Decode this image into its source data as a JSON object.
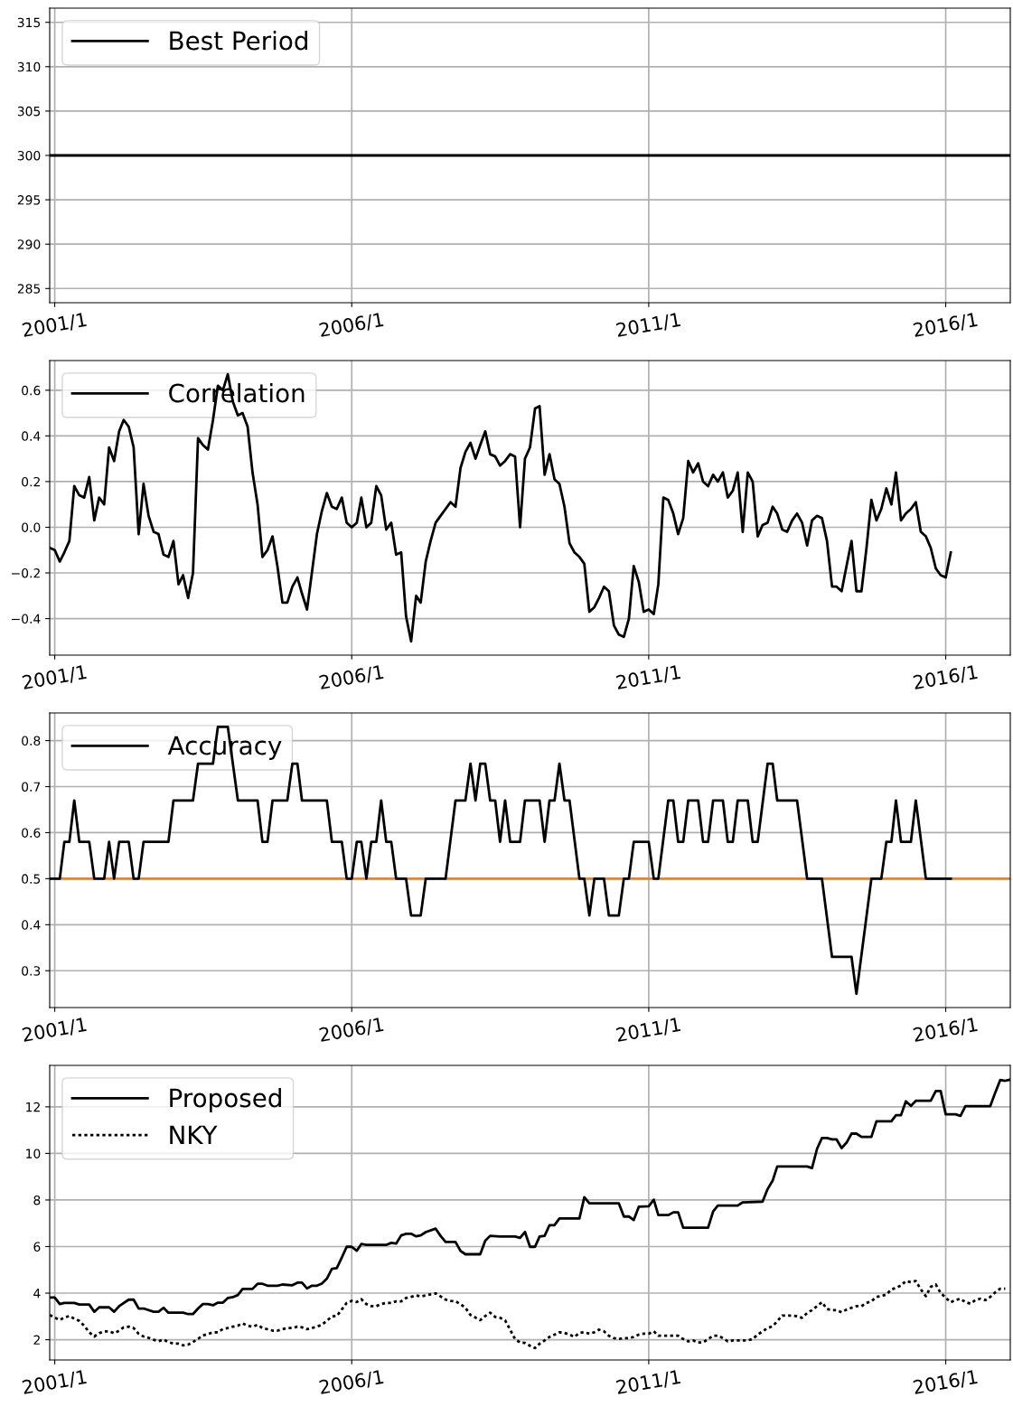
{
  "chart_data": [
    {
      "type": "line",
      "xlim": [
        "2000-12",
        "2017-02"
      ],
      "ylim": [
        283.4,
        316.6
      ],
      "yticks": [
        285,
        290,
        295,
        300,
        305,
        310,
        315
      ],
      "xticks": [
        {
          "value": "2001-01",
          "label": "2001/1"
        },
        {
          "value": "2006-01",
          "label": "2006/1"
        },
        {
          "value": "2011-01",
          "label": "2011/1"
        },
        {
          "value": "2016-01",
          "label": "2016/1"
        }
      ],
      "grid": true,
      "legend": "top left",
      "series": [
        {
          "name": "Best Period",
          "color": "#000000",
          "line_style": "solid",
          "x": [
            "2000-12",
            "2017-02"
          ],
          "values": [
            300,
            300
          ]
        }
      ]
    },
    {
      "type": "line",
      "xlim": [
        "2000-12",
        "2017-02"
      ],
      "ylim": [
        -0.56,
        0.73
      ],
      "yticks": [
        {
          "value": -0.4,
          "label": "−0.4"
        },
        {
          "value": -0.2,
          "label": "−0.2"
        },
        {
          "value": 0,
          "label": "0.0"
        },
        0.2,
        0.4,
        0.6
      ],
      "xticks": [
        {
          "value": "2001-01",
          "label": "2001/1"
        },
        {
          "value": "2006-01",
          "label": "2006/1"
        },
        {
          "value": "2011-01",
          "label": "2011/1"
        },
        {
          "value": "2016-01",
          "label": "2016/1"
        }
      ],
      "grid": true,
      "legend": "top left",
      "x": [
        "2000-12",
        "2001-01",
        "2001-02",
        "2001-03",
        "2001-04",
        "2001-05",
        "2001-06",
        "2001-07",
        "2001-08",
        "2001-09",
        "2001-10",
        "2001-11",
        "2001-12",
        "2002-01",
        "2002-02",
        "2002-03",
        "2002-04",
        "2002-05",
        "2002-06",
        "2002-07",
        "2002-08",
        "2002-09",
        "2002-10",
        "2002-11",
        "2002-12",
        "2003-01",
        "2003-02",
        "2003-03",
        "2003-04",
        "2003-05",
        "2003-06",
        "2003-07",
        "2003-08",
        "2003-09",
        "2003-10",
        "2003-11",
        "2003-12",
        "2004-01",
        "2004-02",
        "2004-03",
        "2004-04",
        "2004-05",
        "2004-06",
        "2004-07",
        "2004-08",
        "2004-09",
        "2004-10",
        "2004-11",
        "2004-12",
        "2005-01",
        "2005-02",
        "2005-03",
        "2005-04",
        "2005-05",
        "2005-06",
        "2005-07",
        "2005-08",
        "2005-09",
        "2005-10",
        "2005-11",
        "2005-12",
        "2006-01",
        "2006-02",
        "2006-03",
        "2006-04",
        "2006-05",
        "2006-06",
        "2006-07",
        "2006-08",
        "2006-09",
        "2006-10",
        "2006-11",
        "2006-12",
        "2007-01",
        "2007-02",
        "2007-03",
        "2007-04",
        "2007-05",
        "2007-06",
        "2007-07",
        "2007-08",
        "2007-09",
        "2007-10",
        "2007-11",
        "2007-12",
        "2008-01",
        "2008-02",
        "2008-03",
        "2008-04",
        "2008-05",
        "2008-06",
        "2008-07",
        "2008-08",
        "2008-09",
        "2008-10",
        "2008-11",
        "2008-12",
        "2009-01",
        "2009-02",
        "2009-03",
        "2009-04",
        "2009-05",
        "2009-06",
        "2009-07",
        "2009-08",
        "2009-09",
        "2009-10",
        "2009-11",
        "2009-12",
        "2010-01",
        "2010-02",
        "2010-03",
        "2010-04",
        "2010-05",
        "2010-06",
        "2010-07",
        "2010-08",
        "2010-09",
        "2010-10",
        "2010-11",
        "2010-12",
        "2011-01",
        "2011-02",
        "2011-03",
        "2011-04",
        "2011-05",
        "2011-06",
        "2011-07",
        "2011-08",
        "2011-09",
        "2011-10",
        "2011-11",
        "2011-12",
        "2012-01",
        "2012-02",
        "2012-03",
        "2012-04",
        "2012-05",
        "2012-06",
        "2012-07",
        "2012-08",
        "2012-09",
        "2012-10",
        "2012-11",
        "2012-12",
        "2013-01",
        "2013-02",
        "2013-03",
        "2013-04",
        "2013-05",
        "2013-06",
        "2013-07",
        "2013-08",
        "2013-09",
        "2013-10",
        "2013-11",
        "2013-12",
        "2014-01",
        "2014-02",
        "2014-03",
        "2014-04",
        "2014-05",
        "2014-06",
        "2014-07",
        "2014-08",
        "2014-09",
        "2014-10",
        "2014-11",
        "2014-12",
        "2015-01",
        "2015-02",
        "2015-03",
        "2015-04",
        "2015-05",
        "2015-06",
        "2015-07",
        "2015-08",
        "2015-09",
        "2015-10",
        "2015-11",
        "2015-12",
        "2016-01",
        "2016-02"
      ],
      "series": [
        {
          "name": "Correlation",
          "color": "#000000",
          "line_style": "solid",
          "values": [
            -0.09,
            -0.1,
            -0.15,
            -0.11,
            -0.06,
            0.18,
            0.14,
            0.13,
            0.22,
            0.03,
            0.13,
            0.1,
            0.35,
            0.29,
            0.42,
            0.47,
            0.44,
            0.35,
            -0.03,
            0.19,
            0.05,
            -0.02,
            -0.03,
            -0.12,
            -0.13,
            -0.06,
            -0.25,
            -0.21,
            -0.31,
            -0.2,
            0.39,
            0.36,
            0.34,
            0.47,
            0.62,
            0.6,
            0.67,
            0.55,
            0.49,
            0.5,
            0.44,
            0.24,
            0.1,
            -0.13,
            -0.1,
            -0.04,
            -0.17,
            -0.33,
            -0.33,
            -0.26,
            -0.22,
            -0.29,
            -0.36,
            -0.2,
            -0.03,
            0.07,
            0.15,
            0.09,
            0.08,
            0.13,
            0.02,
            0.0,
            0.02,
            0.13,
            0.0,
            0.02,
            0.18,
            0.14,
            -0.01,
            0.02,
            -0.12,
            -0.11,
            -0.39,
            -0.5,
            -0.3,
            -0.33,
            -0.15,
            -0.06,
            0.02,
            0.05,
            0.08,
            0.11,
            0.09,
            0.26,
            0.33,
            0.37,
            0.3,
            0.36,
            0.42,
            0.32,
            0.31,
            0.27,
            0.29,
            0.32,
            0.31,
            0.0,
            0.3,
            0.35,
            0.52,
            0.53,
            0.23,
            0.32,
            0.21,
            0.19,
            0.09,
            -0.07,
            -0.11,
            -0.13,
            -0.16,
            -0.37,
            -0.35,
            -0.31,
            -0.26,
            -0.28,
            -0.43,
            -0.47,
            -0.48,
            -0.4,
            -0.17,
            -0.24,
            -0.37,
            -0.36,
            -0.38,
            -0.25,
            0.13,
            0.12,
            0.06,
            -0.03,
            0.04,
            0.29,
            0.24,
            0.28,
            0.2,
            0.18,
            0.23,
            0.2,
            0.24,
            0.13,
            0.16,
            0.24,
            -0.02,
            0.24,
            0.2,
            -0.04,
            0.01,
            0.02,
            0.09,
            0.06,
            -0.01,
            -0.02,
            0.03,
            0.06,
            0.02,
            -0.08,
            0.03,
            0.05,
            0.04,
            -0.06,
            -0.26,
            -0.26,
            -0.28,
            -0.17,
            -0.06,
            -0.28,
            -0.28,
            -0.09,
            0.12,
            0.03,
            0.08,
            0.17,
            0.1,
            0.24,
            0.03,
            0.06,
            0.08,
            0.11,
            -0.02,
            -0.04,
            -0.09,
            -0.18,
            -0.21,
            -0.22,
            -0.11
          ]
        }
      ]
    },
    {
      "type": "line",
      "xlim": [
        "2000-12",
        "2017-02"
      ],
      "ylim": [
        0.22,
        0.86
      ],
      "yticks": [
        0.3,
        0.4,
        0.5,
        0.6,
        0.7,
        0.8
      ],
      "xticks": [
        {
          "value": "2001-01",
          "label": "2001/1"
        },
        {
          "value": "2006-01",
          "label": "2006/1"
        },
        {
          "value": "2011-01",
          "label": "2011/1"
        },
        {
          "value": "2016-01",
          "label": "2016/1"
        }
      ],
      "grid": true,
      "legend": "top left",
      "ref_lines": [
        {
          "axis": "y",
          "value": 0.5,
          "color": "#ff7f0e"
        }
      ],
      "series": [
        {
          "name": "Accuracy",
          "color": "#000000",
          "line_style": "solid",
          "x": [
            "2000-12",
            "2001-02",
            "2001-03",
            "2001-04",
            "2001-05",
            "2001-06",
            "2001-08",
            "2001-09",
            "2001-11",
            "2001-12",
            "2002-01",
            "2002-02",
            "2002-04",
            "2002-05",
            "2002-06",
            "2002-07",
            "2002-12",
            "2003-01",
            "2003-05",
            "2003-06",
            "2003-09",
            "2003-10",
            "2003-12",
            "2004-01",
            "2004-02",
            "2004-06",
            "2004-07",
            "2004-08",
            "2004-09",
            "2004-12",
            "2005-01",
            "2005-02",
            "2005-03",
            "2005-08",
            "2005-09",
            "2005-11",
            "2005-12",
            "2006-01",
            "2006-02",
            "2006-03",
            "2006-04",
            "2006-05",
            "2006-06",
            "2006-07",
            "2006-08",
            "2006-09",
            "2006-10",
            "2006-12",
            "2007-01",
            "2007-03",
            "2007-04",
            "2007-08",
            "2007-10",
            "2007-12",
            "2008-01",
            "2008-02",
            "2008-03",
            "2008-04",
            "2008-05",
            "2008-06",
            "2008-07",
            "2008-08",
            "2008-09",
            "2008-11",
            "2008-12",
            "2009-03",
            "2009-04",
            "2009-05",
            "2009-06",
            "2009-07",
            "2009-08",
            "2009-09",
            "2009-11",
            "2009-12",
            "2010-01",
            "2010-02",
            "2010-04",
            "2010-05",
            "2010-07",
            "2010-08",
            "2010-09",
            "2010-10",
            "2011-01",
            "2011-02",
            "2011-03",
            "2011-05",
            "2011-06",
            "2011-07",
            "2011-08",
            "2011-09",
            "2011-11",
            "2011-12",
            "2012-01",
            "2012-02",
            "2012-04",
            "2012-05",
            "2012-06",
            "2012-07",
            "2012-09",
            "2012-10",
            "2012-11",
            "2013-01",
            "2013-02",
            "2013-03",
            "2013-07",
            "2013-09",
            "2013-12",
            "2014-02",
            "2014-06",
            "2014-07",
            "2014-10",
            "2014-12",
            "2015-01",
            "2015-02",
            "2015-03",
            "2015-04",
            "2015-06",
            "2015-07",
            "2015-09",
            "2016-02"
          ],
          "values": [
            0.5,
            0.5,
            0.58,
            0.58,
            0.67,
            0.58,
            0.58,
            0.5,
            0.5,
            0.58,
            0.5,
            0.58,
            0.58,
            0.5,
            0.5,
            0.58,
            0.58,
            0.67,
            0.67,
            0.75,
            0.75,
            0.83,
            0.83,
            0.75,
            0.67,
            0.67,
            0.58,
            0.58,
            0.67,
            0.67,
            0.75,
            0.75,
            0.67,
            0.67,
            0.58,
            0.58,
            0.5,
            0.5,
            0.58,
            0.58,
            0.5,
            0.58,
            0.58,
            0.67,
            0.58,
            0.58,
            0.5,
            0.5,
            0.42,
            0.42,
            0.5,
            0.5,
            0.67,
            0.67,
            0.75,
            0.67,
            0.75,
            0.75,
            0.67,
            0.67,
            0.58,
            0.67,
            0.58,
            0.58,
            0.67,
            0.67,
            0.58,
            0.67,
            0.67,
            0.75,
            0.67,
            0.67,
            0.5,
            0.5,
            0.42,
            0.5,
            0.5,
            0.42,
            0.42,
            0.5,
            0.5,
            0.58,
            0.58,
            0.5,
            0.5,
            0.67,
            0.67,
            0.58,
            0.58,
            0.67,
            0.67,
            0.58,
            0.58,
            0.67,
            0.67,
            0.58,
            0.58,
            0.67,
            0.67,
            0.58,
            0.58,
            0.75,
            0.75,
            0.67,
            0.67,
            0.5,
            0.5,
            0.33,
            0.33,
            0.25,
            0.5,
            0.5,
            0.58,
            0.58,
            0.67,
            0.58,
            0.58,
            0.67,
            0.5,
            0.5
          ]
        }
      ]
    },
    {
      "type": "line",
      "xlim": [
        "2000-12",
        "2017-02"
      ],
      "ylim": [
        1.13,
        13.78
      ],
      "yticks": [
        2,
        4,
        6,
        8,
        10,
        12
      ],
      "xticks": [
        {
          "value": "2001-01",
          "label": "2001/1"
        },
        {
          "value": "2006-01",
          "label": "2006/1"
        },
        {
          "value": "2011-01",
          "label": "2011/1"
        },
        {
          "value": "2016-01",
          "label": "2016/1"
        }
      ],
      "grid": true,
      "legend": "top left",
      "x": [
        "2000-12",
        "2001-01",
        "2001-02",
        "2001-03",
        "2001-04",
        "2001-05",
        "2001-06",
        "2001-07",
        "2001-08",
        "2001-09",
        "2001-10",
        "2001-11",
        "2001-12",
        "2002-01",
        "2002-02",
        "2002-03",
        "2002-04",
        "2002-05",
        "2002-06",
        "2002-07",
        "2002-08",
        "2002-09",
        "2002-10",
        "2002-11",
        "2002-12",
        "2003-01",
        "2003-02",
        "2003-03",
        "2003-04",
        "2003-05",
        "2003-06",
        "2003-07",
        "2003-08",
        "2003-09",
        "2003-10",
        "2003-11",
        "2003-12",
        "2004-01",
        "2004-02",
        "2004-03",
        "2004-04",
        "2004-05",
        "2004-06",
        "2004-07",
        "2004-08",
        "2004-09",
        "2004-10",
        "2004-11",
        "2004-12",
        "2005-01",
        "2005-02",
        "2005-03",
        "2005-04",
        "2005-05",
        "2005-06",
        "2005-07",
        "2005-08",
        "2005-09",
        "2005-10",
        "2005-11",
        "2005-12",
        "2006-01",
        "2006-02",
        "2006-03",
        "2006-04",
        "2006-05",
        "2006-06",
        "2006-07",
        "2006-08",
        "2006-09",
        "2006-10",
        "2006-11",
        "2006-12",
        "2007-01",
        "2007-02",
        "2007-03",
        "2007-04",
        "2007-05",
        "2007-06",
        "2007-07",
        "2007-08",
        "2007-09",
        "2007-10",
        "2007-11",
        "2007-12",
        "2008-01",
        "2008-02",
        "2008-03",
        "2008-04",
        "2008-05",
        "2008-06",
        "2008-07",
        "2008-08",
        "2008-09",
        "2008-10",
        "2008-11",
        "2008-12",
        "2009-01",
        "2009-02",
        "2009-03",
        "2009-04",
        "2009-05",
        "2009-06",
        "2009-07",
        "2009-08",
        "2009-09",
        "2009-10",
        "2009-11",
        "2009-12",
        "2010-01",
        "2010-02",
        "2010-03",
        "2010-04",
        "2010-05",
        "2010-06",
        "2010-07",
        "2010-08",
        "2010-09",
        "2010-10",
        "2010-11",
        "2010-12",
        "2011-01",
        "2011-02",
        "2011-03",
        "2011-04",
        "2011-05",
        "2011-06",
        "2011-07",
        "2011-08",
        "2011-09",
        "2011-10",
        "2011-11",
        "2011-12",
        "2012-01",
        "2012-02",
        "2012-03",
        "2012-04",
        "2012-05",
        "2012-06",
        "2012-07",
        "2012-08",
        "2012-09",
        "2012-10",
        "2012-11",
        "2012-12",
        "2013-01",
        "2013-02",
        "2013-03",
        "2013-04",
        "2013-05",
        "2013-06",
        "2013-07",
        "2013-08",
        "2013-09",
        "2013-10",
        "2013-11",
        "2013-12",
        "2014-01",
        "2014-02",
        "2014-03",
        "2014-04",
        "2014-05",
        "2014-06",
        "2014-07",
        "2014-08",
        "2014-09",
        "2014-10",
        "2014-11",
        "2014-12",
        "2015-01",
        "2015-02",
        "2015-03",
        "2015-04",
        "2015-05",
        "2015-06",
        "2015-07",
        "2015-08",
        "2015-09",
        "2015-10",
        "2015-11",
        "2015-12",
        "2016-01",
        "2016-02",
        "2016-03",
        "2016-04",
        "2016-05",
        "2016-06",
        "2016-07",
        "2016-08",
        "2016-09",
        "2016-10",
        "2016-11",
        "2016-12",
        "2017-01"
      ],
      "series": [
        {
          "name": "Proposed",
          "color": "#000000",
          "line_style": "solid",
          "x": [
            "2000-12",
            "2001-01",
            "2001-02",
            "2001-03",
            "2001-05",
            "2001-06",
            "2001-08",
            "2001-09",
            "2001-10",
            "2001-12",
            "2002-01",
            "2002-02",
            "2002-04",
            "2002-05",
            "2002-06",
            "2002-07",
            "2002-09",
            "2002-10",
            "2002-11",
            "2002-12",
            "2003-03",
            "2003-04",
            "2003-05",
            "2003-06",
            "2003-07",
            "2003-08",
            "2003-09",
            "2003-10",
            "2003-11",
            "2003-12",
            "2004-01",
            "2004-02",
            "2004-03",
            "2004-05",
            "2004-06",
            "2004-07",
            "2004-08",
            "2004-10",
            "2004-11",
            "2005-01",
            "2005-02",
            "2005-03",
            "2005-04",
            "2005-05",
            "2005-06",
            "2005-07",
            "2005-08",
            "2005-09",
            "2005-10",
            "2005-11",
            "2005-12",
            "2006-01",
            "2006-02",
            "2006-03",
            "2006-04",
            "2006-08",
            "2006-09",
            "2006-10",
            "2006-11",
            "2006-12",
            "2007-01",
            "2007-02",
            "2007-03",
            "2007-04",
            "2007-06",
            "2007-07",
            "2007-08",
            "2007-10",
            "2007-11",
            "2007-12",
            "2008-03",
            "2008-04",
            "2008-05",
            "2008-07",
            "2008-10",
            "2008-11",
            "2008-12",
            "2009-01",
            "2009-02",
            "2009-03",
            "2009-04",
            "2009-05",
            "2009-06",
            "2009-07",
            "2009-11",
            "2009-12",
            "2010-01",
            "2010-07",
            "2010-08",
            "2010-09",
            "2010-10",
            "2010-11",
            "2011-01",
            "2011-02",
            "2011-03",
            "2011-05",
            "2011-06",
            "2011-07",
            "2011-08",
            "2012-01",
            "2012-02",
            "2012-03",
            "2012-07",
            "2012-08",
            "2012-12",
            "2013-01",
            "2013-02",
            "2013-03",
            "2013-09",
            "2013-10",
            "2013-11",
            "2013-12",
            "2014-01",
            "2014-02",
            "2014-03",
            "2014-04",
            "2014-05",
            "2014-06",
            "2014-07",
            "2014-08",
            "2014-10",
            "2014-11",
            "2015-02",
            "2015-03",
            "2015-04",
            "2015-05",
            "2015-06",
            "2015-07",
            "2015-10",
            "2015-11",
            "2015-12",
            "2016-01",
            "2016-03",
            "2016-04",
            "2016-05",
            "2016-10",
            "2016-11",
            "2016-12",
            "2017-01",
            "2017-02"
          ],
          "values": [
            3.81,
            3.81,
            3.53,
            3.58,
            3.58,
            3.51,
            3.51,
            3.2,
            3.39,
            3.39,
            3.2,
            3.44,
            3.72,
            3.72,
            3.34,
            3.34,
            3.2,
            3.2,
            3.37,
            3.16,
            3.16,
            3.1,
            3.1,
            3.34,
            3.53,
            3.53,
            3.48,
            3.59,
            3.59,
            3.79,
            3.83,
            3.92,
            4.18,
            4.18,
            4.4,
            4.4,
            4.32,
            4.32,
            4.37,
            4.34,
            4.45,
            4.45,
            4.2,
            4.32,
            4.32,
            4.41,
            4.62,
            5.04,
            5.07,
            5.53,
            5.99,
            5.99,
            5.82,
            6.11,
            6.07,
            6.07,
            6.16,
            6.13,
            6.48,
            6.55,
            6.55,
            6.44,
            6.48,
            6.62,
            6.77,
            6.46,
            6.2,
            6.2,
            5.81,
            5.67,
            5.67,
            6.25,
            6.46,
            6.43,
            6.43,
            6.37,
            6.63,
            5.99,
            5.99,
            6.43,
            6.46,
            6.92,
            6.92,
            7.21,
            7.21,
            8.12,
            7.86,
            7.86,
            7.29,
            7.29,
            7.14,
            7.71,
            7.73,
            8.01,
            7.35,
            7.35,
            7.47,
            7.47,
            6.81,
            6.81,
            7.51,
            7.76,
            7.76,
            7.9,
            7.93,
            8.47,
            8.83,
            9.44,
            9.44,
            9.37,
            10.2,
            10.66,
            10.66,
            10.6,
            10.6,
            10.23,
            10.46,
            10.85,
            10.85,
            10.71,
            10.71,
            11.38,
            11.38,
            11.64,
            11.64,
            12.24,
            12.04,
            12.26,
            12.26,
            12.68,
            12.68,
            11.68,
            11.68,
            11.61,
            12.03,
            12.03,
            12.62,
            13.15,
            13.12,
            13.17
          ]
        },
        {
          "name": "NKY",
          "color": "#000000",
          "line_style": "dotted",
          "values": [
            3.06,
            2.95,
            2.85,
            2.95,
            3.02,
            2.9,
            2.81,
            2.6,
            2.32,
            2.14,
            2.28,
            2.36,
            2.36,
            2.28,
            2.39,
            2.53,
            2.56,
            2.5,
            2.25,
            2.14,
            2.08,
            2.0,
            1.94,
            2.0,
            1.9,
            1.83,
            1.83,
            1.76,
            1.79,
            1.9,
            2.04,
            2.18,
            2.25,
            2.31,
            2.32,
            2.46,
            2.5,
            2.56,
            2.6,
            2.7,
            2.6,
            2.56,
            2.64,
            2.5,
            2.45,
            2.39,
            2.39,
            2.45,
            2.5,
            2.5,
            2.56,
            2.53,
            2.45,
            2.5,
            2.56,
            2.64,
            2.81,
            3.0,
            3.02,
            3.3,
            3.58,
            3.67,
            3.62,
            3.74,
            3.53,
            3.44,
            3.44,
            3.53,
            3.58,
            3.58,
            3.65,
            3.65,
            3.79,
            3.84,
            3.9,
            3.86,
            3.9,
            3.95,
            3.99,
            3.86,
            3.72,
            3.67,
            3.65,
            3.53,
            3.37,
            3.06,
            2.95,
            2.84,
            3.02,
            3.16,
            2.98,
            2.94,
            2.83,
            2.43,
            2.03,
            1.88,
            1.86,
            1.74,
            1.64,
            1.83,
            1.97,
            2.12,
            2.22,
            2.32,
            2.29,
            2.22,
            2.12,
            2.29,
            2.32,
            2.26,
            2.32,
            2.43,
            2.36,
            2.17,
            2.07,
            2.03,
            2.07,
            2.07,
            2.12,
            2.22,
            2.26,
            2.26,
            2.36,
            2.17,
            2.17,
            2.17,
            2.17,
            2.17,
            2.03,
            1.93,
            1.97,
            1.88,
            1.88,
            2.03,
            2.17,
            2.17,
            2.07,
            1.93,
            1.97,
            1.97,
            1.97,
            1.97,
            2.03,
            2.22,
            2.36,
            2.5,
            2.58,
            2.79,
            3.04,
            3.04,
            3.04,
            3.01,
            2.94,
            3.15,
            3.27,
            3.44,
            3.61,
            3.32,
            3.27,
            3.27,
            3.18,
            3.29,
            3.37,
            3.44,
            3.44,
            3.58,
            3.65,
            3.84,
            3.87,
            3.94,
            4.16,
            4.23,
            4.33,
            4.52,
            4.47,
            4.52,
            4.16,
            3.87,
            4.27,
            4.37,
            4.01,
            3.8,
            3.61,
            3.7,
            3.76,
            3.61,
            3.55,
            3.7,
            3.76,
            3.7,
            3.84,
            4.04,
            4.19,
            4.19
          ]
        }
      ]
    }
  ]
}
